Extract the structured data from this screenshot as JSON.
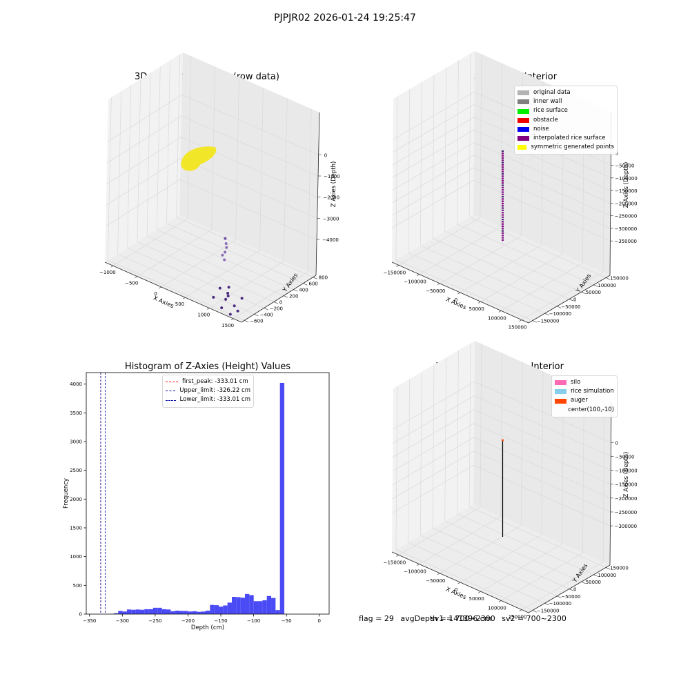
{
  "suptitle": "PJPJR02 2026-01-24 19:25:47",
  "colors": {
    "grid": "#d9d9d9",
    "pane_left": "#f2f2f2",
    "pane_right": "#e9e9e9",
    "pane_floor": "#ededed",
    "histogram_bar": "#4b4bf5",
    "first_peak_line": "#ff0000",
    "limit_line": "#0000aa"
  },
  "footer": {
    "flag": "flag = 29",
    "avg_depth": "avgDepth = 141396 cm",
    "sv1": "sv1 = 700~2300",
    "sv2": "sv2 = 700~2300"
  },
  "chart_data": [
    {
      "type": "scatter",
      "projection": "3d",
      "title": "3D Plot of Silo Interior(row data)",
      "xlabel": "X Axies",
      "ylabel": "Y Axies",
      "zlabel": "Z Axies (Depth)",
      "x_ticks": [
        "−1000",
        "−500",
        "0",
        "500",
        "1000",
        "1500"
      ],
      "y_ticks": [
        "−600",
        "−400",
        "−200",
        "0",
        "200",
        "400",
        "600",
        "800"
      ],
      "z_ticks": [
        "0",
        "−1000",
        "−2000",
        "−3000",
        "−4000"
      ],
      "xlim": [
        -1300,
        1500
      ],
      "ylim": [
        -650,
        850
      ],
      "zlim": [
        -4500,
        100
      ],
      "grid": true,
      "surface_cluster": {
        "color": "#f2e628",
        "description_z": -500
      },
      "points": [
        {
          "x": -260,
          "y": 750,
          "z": -4250,
          "c": "#6f4ea3"
        },
        {
          "x": -110,
          "y": 620,
          "z": -4000,
          "c": "#8a6bb8"
        },
        {
          "x": -40,
          "y": 560,
          "z": -4060,
          "c": "#8a6bb8"
        },
        {
          "x": 20,
          "y": 470,
          "z": -4130,
          "c": "#8a6bb8"
        },
        {
          "x": 30,
          "y": 410,
          "z": -4230,
          "c": "#8a6bb8"
        },
        {
          "x": 160,
          "y": 320,
          "z": -4120,
          "c": "#8a6bb8"
        },
        {
          "x": 620,
          "y": -220,
          "z": -4300,
          "c": "#4b2a7f"
        },
        {
          "x": 820,
          "y": -260,
          "z": -4250,
          "c": "#4b2a7f"
        },
        {
          "x": 870,
          "y": -300,
          "z": -4300,
          "c": "#4b2a7f"
        },
        {
          "x": 700,
          "y": -120,
          "z": -4350,
          "c": "#4b2a7f"
        },
        {
          "x": 900,
          "y": -380,
          "z": -4330,
          "c": "#4b2a7f"
        },
        {
          "x": 1080,
          "y": -230,
          "z": -4290,
          "c": "#4b2a7f"
        },
        {
          "x": 700,
          "y": -430,
          "z": -4400,
          "c": "#4b2a7f"
        },
        {
          "x": 1000,
          "y": -560,
          "z": -4400,
          "c": "#4b2a7f"
        },
        {
          "x": 1120,
          "y": -420,
          "z": -4380,
          "c": "#4b2a7f"
        },
        {
          "x": 1250,
          "y": -480,
          "z": -4440,
          "c": "#4b2a7f"
        },
        {
          "x": 1220,
          "y": -600,
          "z": -4460,
          "c": "#4b2a7f"
        }
      ]
    },
    {
      "type": "scatter",
      "projection": "3d",
      "title": "3D classify of Silo Interior",
      "xlabel": "X Axies",
      "ylabel": "Y Axies",
      "zlabel": "Z Axies (Depth)",
      "x_ticks": [
        "−150000",
        "−100000",
        "−50000",
        "0",
        "50000",
        "100000",
        "150000"
      ],
      "y_ticks": [
        "−150000",
        "−100000",
        "−50000",
        "0",
        "50000",
        "100000",
        "150000"
      ],
      "z_ticks": [
        "0",
        "−50000",
        "−100000",
        "−150000",
        "−200000",
        "−250000",
        "−300000",
        "−350000"
      ],
      "grid": true,
      "legend_position": "upper right",
      "legend": [
        {
          "label": "original data",
          "color": "#b3b3b3"
        },
        {
          "label": "inner wall",
          "color": "#808080"
        },
        {
          "label": "rice surface",
          "color": "#00ee00"
        },
        {
          "label": "obstacle",
          "color": "#ee0000"
        },
        {
          "label": "noise",
          "color": "#0000ee"
        },
        {
          "label": "interpolated rice surface",
          "color": "#800080"
        },
        {
          "label": "symmetric generated points",
          "color": "#ffff00"
        }
      ]
    },
    {
      "type": "bar",
      "title": "Histogram of Z-Axies (Height) Values",
      "xlabel": "Depth (cm)",
      "ylabel": "Frequency",
      "xlim": [
        -355,
        15
      ],
      "ylim": [
        0,
        4200
      ],
      "x_ticks": [
        "−350",
        "−300",
        "−250",
        "−200",
        "−150",
        "−100",
        "−50",
        "0"
      ],
      "y_ticks": [
        "0",
        "500",
        "1000",
        "1500",
        "2000",
        "2500",
        "3000",
        "3500",
        "4000"
      ],
      "bin_start": -333,
      "bin_width": 6.66,
      "values": [
        0,
        0,
        5,
        15,
        55,
        45,
        80,
        75,
        80,
        75,
        85,
        85,
        110,
        110,
        85,
        80,
        50,
        60,
        55,
        55,
        45,
        50,
        40,
        45,
        60,
        160,
        155,
        130,
        150,
        200,
        300,
        295,
        285,
        350,
        330,
        225,
        225,
        240,
        315,
        280,
        70,
        4020
      ],
      "vlines": [
        {
          "label": "first_peak: -333.01 cm",
          "x": -333.01,
          "color": "#ff0000"
        },
        {
          "label": "Upper_limit: -326.22 cm",
          "x": -326.22,
          "color": "#0000aa"
        },
        {
          "label": "Lower_limit: -333.01 cm",
          "x": -333.01,
          "color": "#0000aa"
        }
      ],
      "legend_position": "upper center"
    },
    {
      "type": "scatter",
      "projection": "3d",
      "title": "3D simulation of Silo Interior",
      "xlabel": "X Axies",
      "ylabel": "Y Axies",
      "zlabel": "Z Axies (Depth)",
      "x_ticks": [
        "−150000",
        "−100000",
        "−50000",
        "0",
        "50000",
        "100000",
        "150000"
      ],
      "y_ticks": [
        "−150000",
        "−100000",
        "−50000",
        "0",
        "50000",
        "100000",
        "150000"
      ],
      "z_ticks": [
        "0",
        "−50000",
        "−100000",
        "−150000",
        "−200000",
        "−250000",
        "−300000"
      ],
      "grid": true,
      "legend_position": "upper right",
      "legend": [
        {
          "label": "silo",
          "color": "#ff69b4"
        },
        {
          "label": "rice simulation",
          "color": "#87ceeb"
        },
        {
          "label": "auger",
          "color": "#ff4500"
        },
        {
          "label": "center(100,-10)",
          "color": ""
        }
      ]
    }
  ]
}
